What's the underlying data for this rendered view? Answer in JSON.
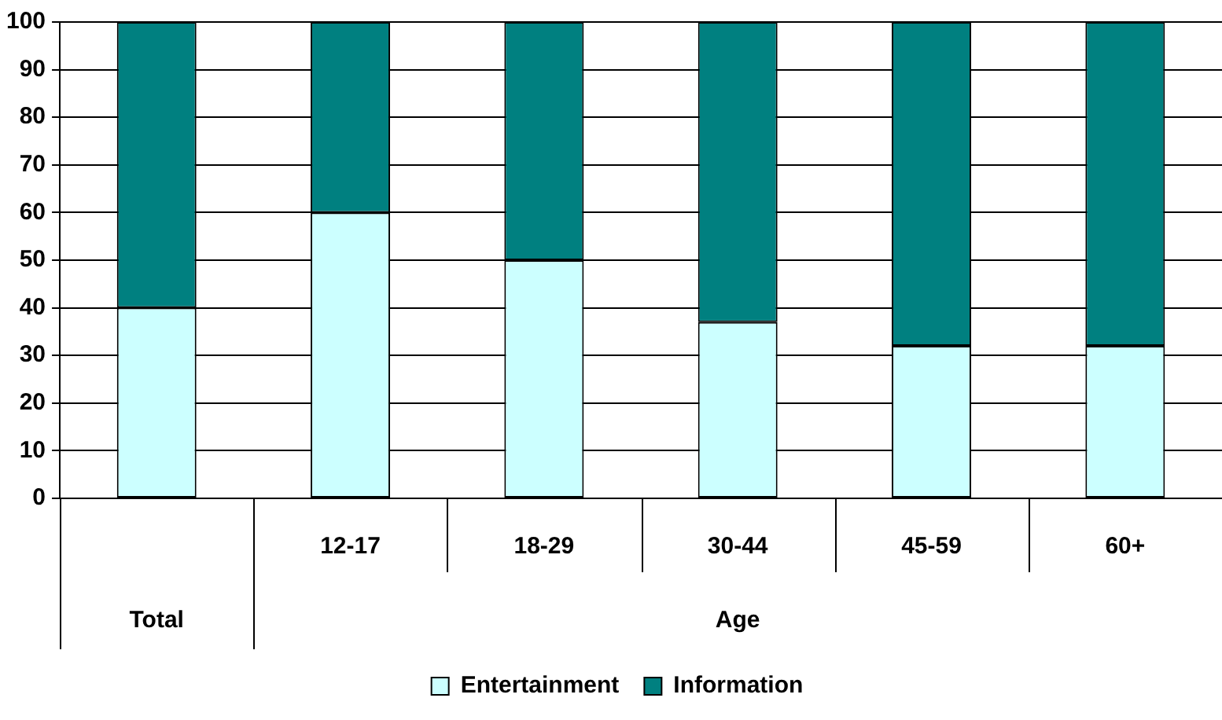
{
  "chart_data": {
    "type": "bar",
    "stacked": true,
    "xlabel": "Age",
    "categories": [
      null,
      "12-17",
      "18-29",
      "30-44",
      "45-59",
      "60+"
    ],
    "annotations": [
      "Total"
    ],
    "series": [
      {
        "name": "Entertainment",
        "color": "#ccffff",
        "values": [
          40,
          60,
          50,
          37,
          32,
          32
        ]
      },
      {
        "name": "Information",
        "color": "#008080",
        "values": [
          60,
          40,
          50,
          63,
          68,
          68
        ]
      }
    ],
    "ylim": [
      0,
      100
    ],
    "yticks": [
      0,
      10,
      20,
      30,
      40,
      50,
      60,
      70,
      80,
      90,
      100
    ],
    "grid": "y",
    "legend": "bottom"
  }
}
